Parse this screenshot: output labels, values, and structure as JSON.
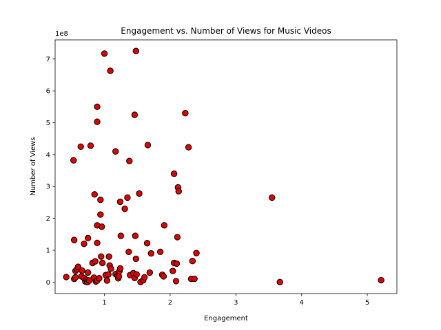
{
  "chart_data": {
    "type": "scatter",
    "title": "Engagement vs. Number of Views for Music Videos",
    "xlabel": "Engagement",
    "ylabel": "Number of Views",
    "y_offset_text": "1e8",
    "xlim": [
      0.25,
      5.45
    ],
    "ylim": [
      -0.36,
      7.6
    ],
    "x_ticks": [
      1,
      2,
      3,
      4,
      5
    ],
    "y_ticks": [
      0,
      1,
      2,
      3,
      4,
      5,
      6,
      7
    ],
    "grid": false,
    "legend": "none",
    "marker_color": "#dd0000",
    "marker_edge_color": "#000000",
    "series": [
      {
        "points": [
          [
            0.42,
            0.16
          ],
          [
            0.54,
            0.1
          ],
          [
            0.56,
            0.15
          ],
          [
            0.56,
            0.35
          ],
          [
            0.58,
            0.4
          ],
          [
            0.6,
            0.48
          ],
          [
            0.65,
            0.18
          ],
          [
            0.66,
            0.36
          ],
          [
            0.69,
            0.13
          ],
          [
            0.71,
            0.02
          ],
          [
            0.73,
            0.07
          ],
          [
            0.74,
            0.0
          ],
          [
            0.75,
            0.3
          ],
          [
            0.77,
            0.05
          ],
          [
            0.82,
            0.6
          ],
          [
            0.84,
            0.14
          ],
          [
            0.86,
            0.65
          ],
          [
            0.87,
            0.02
          ],
          [
            0.89,
            0.05
          ],
          [
            0.92,
            0.12
          ],
          [
            0.95,
            0.8
          ],
          [
            0.97,
            0.6
          ],
          [
            1.02,
            0.22
          ],
          [
            1.04,
            0.05
          ],
          [
            1.06,
            0.24
          ],
          [
            1.07,
            0.8
          ],
          [
            1.08,
            0.52
          ],
          [
            1.1,
            0.42
          ],
          [
            1.17,
            0.25
          ],
          [
            1.2,
            0.2
          ],
          [
            1.21,
            0.12
          ],
          [
            1.22,
            0.18
          ],
          [
            1.23,
            0.35
          ],
          [
            1.24,
            0.43
          ],
          [
            1.31,
            2.3
          ],
          [
            1.37,
            0.95
          ],
          [
            1.39,
            0.22
          ],
          [
            1.44,
            0.28
          ],
          [
            1.46,
            0.13
          ],
          [
            1.48,
            0.73
          ],
          [
            1.49,
            0.24
          ],
          [
            1.55,
            0.0
          ],
          [
            1.59,
            0.06
          ],
          [
            1.61,
            0.15
          ],
          [
            1.65,
            1.22
          ],
          [
            1.69,
            0.3
          ],
          [
            1.71,
            0.9
          ],
          [
            1.85,
            0.95
          ],
          [
            1.88,
            0.23
          ],
          [
            1.9,
            0.18
          ],
          [
            1.91,
            1.78
          ],
          [
            2.04,
            0.35
          ],
          [
            2.06,
            0.6
          ],
          [
            2.09,
            0.03
          ],
          [
            2.1,
            0.58
          ],
          [
            2.11,
            1.41
          ],
          [
            2.32,
            0.1
          ],
          [
            2.34,
            0.66
          ],
          [
            2.37,
            0.1
          ],
          [
            2.4,
            0.91
          ],
          [
            3.67,
            0.0
          ],
          [
            5.21,
            0.06
          ],
          [
            3.55,
            2.65
          ],
          [
            0.53,
            3.82
          ],
          [
            0.64,
            4.25
          ],
          [
            0.79,
            4.28
          ],
          [
            0.85,
            2.75
          ],
          [
            0.89,
            5.5
          ],
          [
            0.89,
            5.03
          ],
          [
            0.94,
            2.58
          ],
          [
            0.94,
            2.12
          ],
          [
            0.89,
            1.78
          ],
          [
            0.96,
            1.74
          ],
          [
            0.89,
            1.23
          ],
          [
            0.75,
            1.38
          ],
          [
            0.54,
            1.32
          ],
          [
            0.69,
            1.2
          ],
          [
            1.0,
            7.17
          ],
          [
            1.09,
            6.63
          ],
          [
            1.17,
            4.1
          ],
          [
            1.48,
            7.25
          ],
          [
            1.46,
            5.25
          ],
          [
            1.66,
            4.3
          ],
          [
            1.38,
            3.8
          ],
          [
            1.53,
            2.78
          ],
          [
            1.35,
            2.65
          ],
          [
            1.24,
            2.52
          ],
          [
            1.25,
            1.45
          ],
          [
            1.47,
            1.45
          ],
          [
            2.23,
            5.3
          ],
          [
            2.28,
            4.23
          ],
          [
            2.06,
            3.4
          ],
          [
            2.12,
            2.97
          ],
          [
            2.13,
            2.85
          ]
        ]
      }
    ]
  }
}
